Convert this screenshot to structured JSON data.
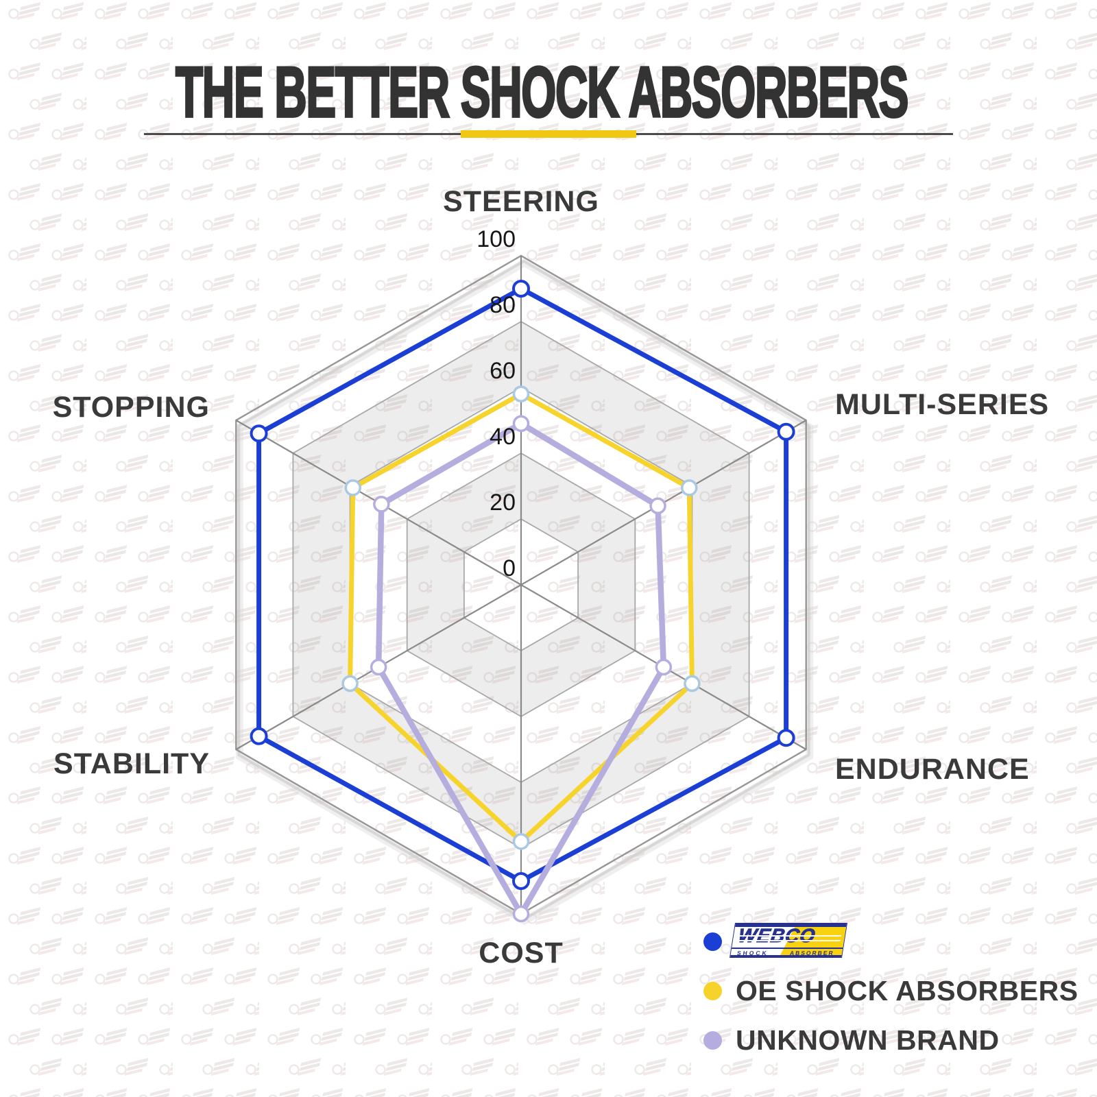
{
  "title": "THE BETTER SHOCK ABSORBERS",
  "divider": {
    "line_color": "#4a4a4a",
    "accent_color": "#f0c713"
  },
  "chart_data": {
    "type": "radar",
    "categories": [
      "STEERING",
      "MULTI-SERIES",
      "ENDURANCE",
      "COST",
      "STABILITY",
      "STOPPING"
    ],
    "axis_ticks": [
      0,
      20,
      40,
      60,
      80,
      100
    ],
    "axis_range": [
      0,
      100
    ],
    "grid": "hexagonal rings, alternating white and gray bands",
    "legend_position": "bottom-right",
    "series": [
      {
        "name": "WEBCO SHOCK ABSORBER",
        "color": "#1b3ed4",
        "marker_color": "#1b3ed4",
        "values": [
          90,
          93,
          93,
          90,
          92,
          92
        ]
      },
      {
        "name": "OE SHOCK ABSORBERS",
        "color": "#f7d42c",
        "marker_color": "#a9c8e2",
        "values": [
          58,
          59,
          60,
          78,
          60,
          59
        ]
      },
      {
        "name": "UNKNOWN BRAND",
        "color": "#b6addf",
        "marker_color": "#b6addf",
        "values": [
          49,
          48,
          50,
          100,
          50,
          49
        ]
      }
    ]
  },
  "legend": [
    {
      "label": "WEBCO SHOCK ABSORBER",
      "dot_color": "#1b3ed4",
      "logo": {
        "main": "WEBCO",
        "sub_left": "SHOCK",
        "sub_right": "ABSORBER",
        "navy": "#27318f",
        "yellow": "#f8d20e"
      }
    },
    {
      "label": "OE SHOCK ABSORBERS",
      "dot_color": "#f6d32b"
    },
    {
      "label": "UNKNOWN BRAND",
      "dot_color": "#b5acdf"
    }
  ],
  "colors": {
    "title": "#333333",
    "axis_label": "#3a3a3a",
    "tick_label": "#161616",
    "grid_line": "#a8a8a8",
    "outer_line": "#969696",
    "spoke_line": "#8a8a8a",
    "band_fill": "rgba(150,150,150,0.17)"
  }
}
